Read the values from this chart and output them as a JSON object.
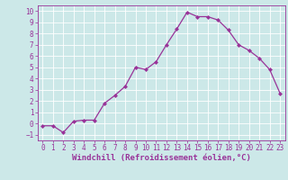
{
  "x": [
    0,
    1,
    2,
    3,
    4,
    5,
    6,
    7,
    8,
    9,
    10,
    11,
    12,
    13,
    14,
    15,
    16,
    17,
    18,
    19,
    20,
    21,
    22,
    23
  ],
  "y": [
    -0.2,
    -0.2,
    -0.8,
    0.2,
    0.3,
    0.3,
    1.8,
    2.5,
    3.3,
    5.0,
    4.8,
    5.5,
    7.0,
    8.4,
    9.9,
    9.5,
    9.5,
    9.2,
    8.3,
    7.0,
    6.5,
    5.8,
    4.8,
    2.7
  ],
  "line_color": "#993399",
  "marker": "D",
  "marker_size": 2.0,
  "bg_color": "#cce8e8",
  "grid_color": "#ffffff",
  "xlabel": "Windchill (Refroidissement éolien,°C)",
  "ylim": [
    -1.5,
    10.5
  ],
  "xlim": [
    -0.5,
    23.5
  ],
  "yticks": [
    -1,
    0,
    1,
    2,
    3,
    4,
    5,
    6,
    7,
    8,
    9,
    10
  ],
  "xticks": [
    0,
    1,
    2,
    3,
    4,
    5,
    6,
    7,
    8,
    9,
    10,
    11,
    12,
    13,
    14,
    15,
    16,
    17,
    18,
    19,
    20,
    21,
    22,
    23
  ],
  "tick_label_size": 5.5,
  "xlabel_size": 6.5,
  "line_width": 0.9
}
